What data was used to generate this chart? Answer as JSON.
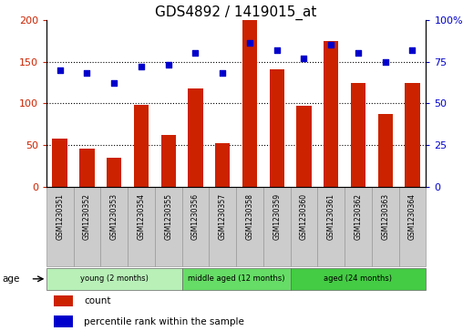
{
  "title": "GDS4892 / 1419015_at",
  "samples": [
    "GSM1230351",
    "GSM1230352",
    "GSM1230353",
    "GSM1230354",
    "GSM1230355",
    "GSM1230356",
    "GSM1230357",
    "GSM1230358",
    "GSM1230359",
    "GSM1230360",
    "GSM1230361",
    "GSM1230362",
    "GSM1230363",
    "GSM1230364"
  ],
  "counts": [
    58,
    46,
    35,
    98,
    62,
    118,
    52,
    200,
    141,
    97,
    175,
    125,
    87,
    124
  ],
  "percentiles": [
    70,
    68,
    62,
    72,
    73,
    80,
    68,
    86,
    82,
    77,
    85,
    80,
    75,
    82
  ],
  "group_labels": [
    "young (2 months)",
    "middle aged (12 months)",
    "aged (24 months)"
  ],
  "group_starts": [
    0,
    5,
    9
  ],
  "group_ends": [
    5,
    9,
    14
  ],
  "group_colors": [
    "#b8f0b8",
    "#66dd66",
    "#44cc44"
  ],
  "bar_color": "#CC2200",
  "dot_color": "#0000CC",
  "ylim_left": [
    0,
    200
  ],
  "ylim_right": [
    0,
    100
  ],
  "yticks_left": [
    0,
    50,
    100,
    150,
    200
  ],
  "yticks_right": [
    0,
    25,
    50,
    75,
    100
  ],
  "ytick_labels_left": [
    "0",
    "50",
    "100",
    "150",
    "200"
  ],
  "ytick_labels_right": [
    "0",
    "25",
    "50",
    "75",
    "100%"
  ],
  "title_fontsize": 11,
  "legend_label_count": "count",
  "legend_label_percentile": "percentile rank within the sample",
  "age_label": "age",
  "sample_box_color": "#cccccc",
  "sample_box_edge_color": "#999999"
}
